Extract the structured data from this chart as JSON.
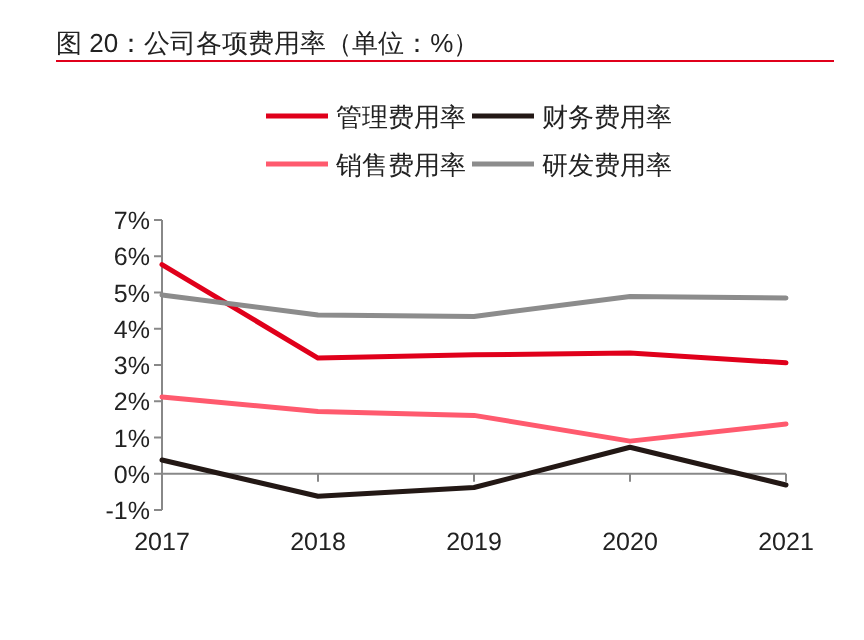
{
  "chart_data": {
    "type": "line",
    "title": "图 20：公司各项费用率（单位：%）",
    "categories": [
      "2017",
      "2018",
      "2019",
      "2020",
      "2021"
    ],
    "series": [
      {
        "name": "管理费用率",
        "color": "#e0001b",
        "values": [
          5.77,
          3.19,
          3.28,
          3.33,
          3.06
        ]
      },
      {
        "name": "财务费用率",
        "color": "#231815",
        "values": [
          0.38,
          -0.62,
          -0.38,
          0.73,
          -0.31
        ]
      },
      {
        "name": "销售费用率",
        "color": "#ff5a6e",
        "values": [
          2.12,
          1.72,
          1.61,
          0.9,
          1.37
        ]
      },
      {
        "name": "研发费用率",
        "color": "#8c8c8c",
        "values": [
          4.93,
          4.38,
          4.34,
          4.89,
          4.85
        ]
      }
    ],
    "ylim": [
      -1,
      7
    ],
    "yticks": [
      {
        "value": -1,
        "label": "-1%"
      },
      {
        "value": 0,
        "label": "0%"
      },
      {
        "value": 1,
        "label": "1%"
      },
      {
        "value": 2,
        "label": "2%"
      },
      {
        "value": 3,
        "label": "3%"
      },
      {
        "value": 4,
        "label": "4%"
      },
      {
        "value": 5,
        "label": "5%"
      },
      {
        "value": 6,
        "label": "6%"
      },
      {
        "value": 7,
        "label": "7%"
      }
    ],
    "legend": "top",
    "grid": false,
    "line_style": "solid",
    "marker": "none"
  }
}
